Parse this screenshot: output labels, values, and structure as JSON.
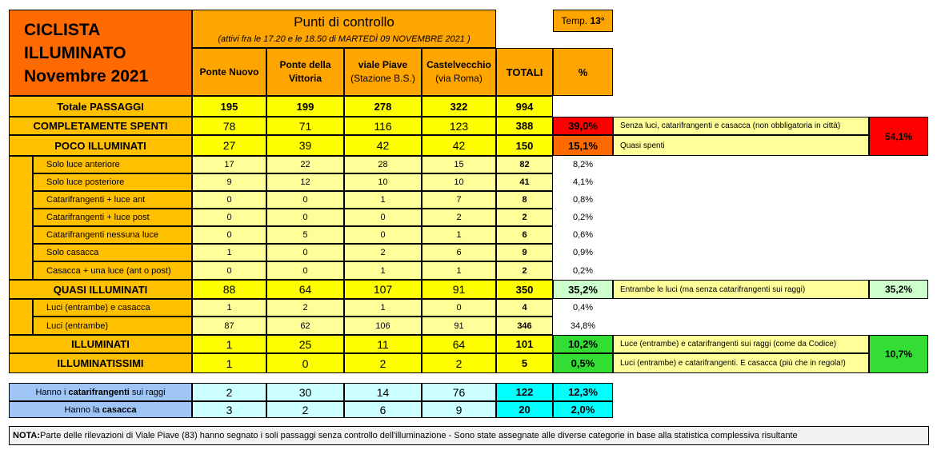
{
  "title": [
    "CICLISTA",
    "ILLUMINATO",
    "Novembre 2021"
  ],
  "header": {
    "checkpoints_title": "Punti di controllo",
    "checkpoints_note": "(attivi fra le 17.20 e le 18.50 di  MARTEDÌ 09 NOVEMBRE 2021 )",
    "temp_label": "Temp.",
    "temp_value": "13°",
    "columns": [
      {
        "line1": "Ponte Nuovo",
        "line2": ""
      },
      {
        "line1": "Ponte della",
        "line2": "Vittoria"
      },
      {
        "line1": "viale Piave",
        "line2": "(Stazione B.S.)"
      },
      {
        "line1": "Castelvecchio",
        "line2": "(via Roma)"
      }
    ],
    "totali": "TOTALI",
    "percent": "%"
  },
  "rows": [
    {
      "label": "Totale PASSAGGI",
      "values": [
        "195",
        "199",
        "278",
        "322"
      ],
      "total": "994",
      "pct": ""
    },
    {
      "label": "COMPLETAMENTE SPENTI",
      "values": [
        "78",
        "71",
        "116",
        "123"
      ],
      "total": "388",
      "pct": "39,0%"
    },
    {
      "label": "POCO ILLUMINATI",
      "values": [
        "27",
        "39",
        "42",
        "42"
      ],
      "total": "150",
      "pct": "15,1%"
    },
    {
      "label": "Solo luce anteriore",
      "values": [
        "17",
        "22",
        "28",
        "15"
      ],
      "total": "82",
      "pct": "8,2%"
    },
    {
      "label": "Solo luce posteriore",
      "values": [
        "9",
        "12",
        "10",
        "10"
      ],
      "total": "41",
      "pct": "4,1%"
    },
    {
      "label": "Catarifrangenti + luce ant",
      "values": [
        "0",
        "0",
        "1",
        "7"
      ],
      "total": "8",
      "pct": "0,8%"
    },
    {
      "label": "Catarifrangenti + luce post",
      "values": [
        "0",
        "0",
        "0",
        "2"
      ],
      "total": "2",
      "pct": "0,2%"
    },
    {
      "label": "Catarifrangenti nessuna luce",
      "values": [
        "0",
        "5",
        "0",
        "1"
      ],
      "total": "6",
      "pct": "0,6%"
    },
    {
      "label": "Solo casacca",
      "values": [
        "1",
        "0",
        "2",
        "6"
      ],
      "total": "9",
      "pct": "0,9%"
    },
    {
      "label": "Casacca + una luce (ant o post)",
      "values": [
        "0",
        "0",
        "1",
        "1"
      ],
      "total": "2",
      "pct": "0,2%"
    },
    {
      "label": "QUASI ILLUMINATI",
      "values": [
        "88",
        "64",
        "107",
        "91"
      ],
      "total": "350",
      "pct": "35,2%"
    },
    {
      "label": "Luci (entrambe) e casacca",
      "values": [
        "1",
        "2",
        "1",
        "0"
      ],
      "total": "4",
      "pct": "0,4%"
    },
    {
      "label": "Luci (entrambe)",
      "values": [
        "87",
        "62",
        "106",
        "91"
      ],
      "total": "346",
      "pct": "34,8%"
    },
    {
      "label": "ILLUMINATI",
      "values": [
        "1",
        "25",
        "11",
        "64"
      ],
      "total": "101",
      "pct": "10,2%"
    },
    {
      "label": "ILLUMINATISSIMI",
      "values": [
        "1",
        "0",
        "2",
        "2"
      ],
      "total": "5",
      "pct": "0,5%"
    }
  ],
  "notes": {
    "spenti": "Senza luci, catarifrangenti e casacca (non obbligatoria in città)",
    "poco": "Quasi spenti",
    "combined_spenti_poco": "54,1%",
    "quasi": "Entrambe le luci (ma senza catarifrangenti sui raggi)",
    "quasi_pct": "35,2%",
    "illuminati": "Luce (entrambe) e catarifrangenti sui raggi (come da Codice)",
    "illuminatissimi": "Luci (entrambe) e catarifrangenti. E casacca (più che in regola!)",
    "combined_illuminati": "10,7%"
  },
  "extra": [
    {
      "pre": "Hanno i ",
      "bold": "catarifrangenti",
      "post": " sui raggi",
      "values": [
        "2",
        "30",
        "14",
        "76"
      ],
      "total": "122",
      "pct": "12,3%"
    },
    {
      "pre": "Hanno la ",
      "bold": "casacca",
      "post": "",
      "values": [
        "3",
        "2",
        "6",
        "9"
      ],
      "total": "20",
      "pct": "2,0%"
    }
  ],
  "footnote": {
    "label": "NOTA:",
    "text": " Parte delle rilevazioni di Viale Piave (83) hanno segnato i soli passaggi senza controllo dell'illuminazione - Sono state assegnate alle diverse categorie in base alla statistica complessiva risultante"
  },
  "colors": {
    "title_bg": "#ff6a00",
    "header_bg": "#ffa500",
    "label_bg": "#ffc000",
    "data_bg": "#ffff00",
    "sub_data_bg": "#ffff99",
    "red": "#ff0000",
    "green": "#33dd33",
    "light_green": "#ccffcc",
    "cyan": "#00ffff",
    "light_cyan": "#ccffff",
    "blue_label": "#9ec5f5"
  }
}
